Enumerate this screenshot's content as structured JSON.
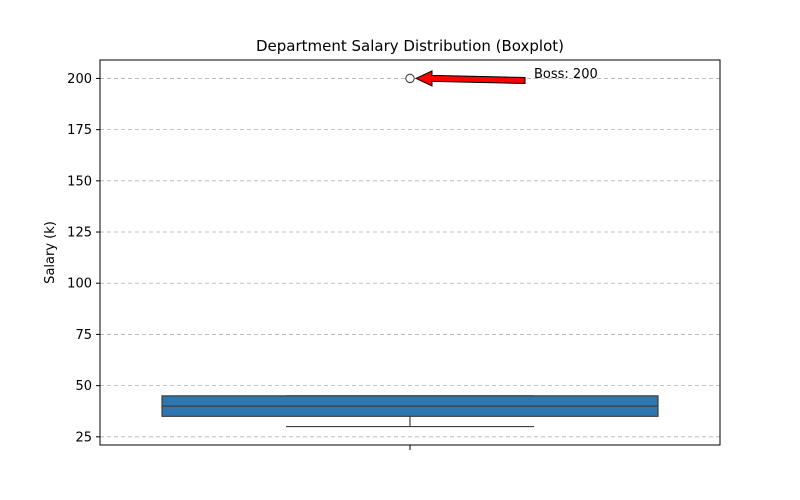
{
  "chart_data": {
    "type": "boxplot",
    "title": "Department Salary Distribution (Boxplot)",
    "xlabel": "",
    "ylabel": "Salary (k)",
    "ylim": [
      21,
      209
    ],
    "yticks": [
      25,
      50,
      75,
      100,
      125,
      150,
      175,
      200
    ],
    "grid": "y-dashed",
    "box": {
      "whisker_low": 30,
      "q1": 35,
      "median": 40,
      "q3": 45,
      "whisker_high": 45,
      "outliers": [
        200
      ],
      "color": "#2d76b0"
    },
    "annotation": {
      "text": "Boss: 200",
      "target_value": 200,
      "arrow_color": "#ff0000"
    }
  }
}
